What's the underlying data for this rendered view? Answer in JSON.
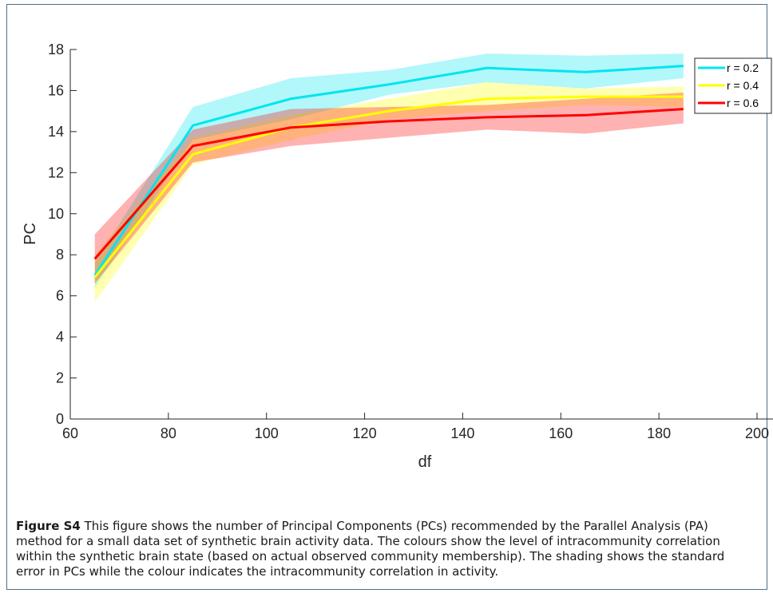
{
  "chart_data": {
    "type": "line",
    "xlabel": "df",
    "ylabel": "PC",
    "xlim": [
      60,
      200
    ],
    "ylim": [
      0,
      18
    ],
    "xticks": [
      60,
      80,
      100,
      120,
      140,
      160,
      180,
      200
    ],
    "yticks": [
      0,
      2,
      4,
      6,
      8,
      10,
      12,
      14,
      16,
      18
    ],
    "x": [
      65,
      85,
      105,
      125,
      145,
      165,
      185
    ],
    "grid": false,
    "legend_position": "top-right",
    "series": [
      {
        "name": "r = 0.2",
        "color": "#00e5ee",
        "values": [
          7.0,
          14.3,
          15.6,
          16.3,
          17.1,
          16.9,
          17.2
        ],
        "upper": [
          7.6,
          15.2,
          16.6,
          17.0,
          17.8,
          17.7,
          17.8
        ],
        "lower": [
          6.4,
          13.6,
          14.6,
          15.8,
          16.4,
          16.1,
          16.6
        ]
      },
      {
        "name": "r = 0.4",
        "color": "#ffff00",
        "values": [
          6.9,
          12.9,
          14.2,
          15.0,
          15.6,
          15.7,
          15.7
        ],
        "upper": [
          8.0,
          13.7,
          14.8,
          15.6,
          16.4,
          16.1,
          16.2
        ],
        "lower": [
          5.7,
          12.4,
          13.6,
          14.6,
          15.0,
          15.3,
          15.2
        ]
      },
      {
        "name": "r = 0.6",
        "color": "#ff0000",
        "values": [
          7.8,
          13.3,
          14.2,
          14.5,
          14.7,
          14.8,
          15.1
        ],
        "upper": [
          9.0,
          14.1,
          15.1,
          15.2,
          15.3,
          15.6,
          15.9
        ],
        "lower": [
          6.6,
          12.5,
          13.3,
          13.7,
          14.1,
          13.9,
          14.4
        ]
      }
    ]
  },
  "caption": {
    "label": "Figure S4",
    "text": "This figure shows the number of Principal Components (PCs) recommended by the Parallel Analysis (PA) method for a small data set of synthetic brain activity data. The colours show the level of intracommunity correlation within the synthetic brain state (based on actual observed community membership). The shading shows the standard error in PCs while the colour indicates the intracommunity correlation in activity."
  }
}
